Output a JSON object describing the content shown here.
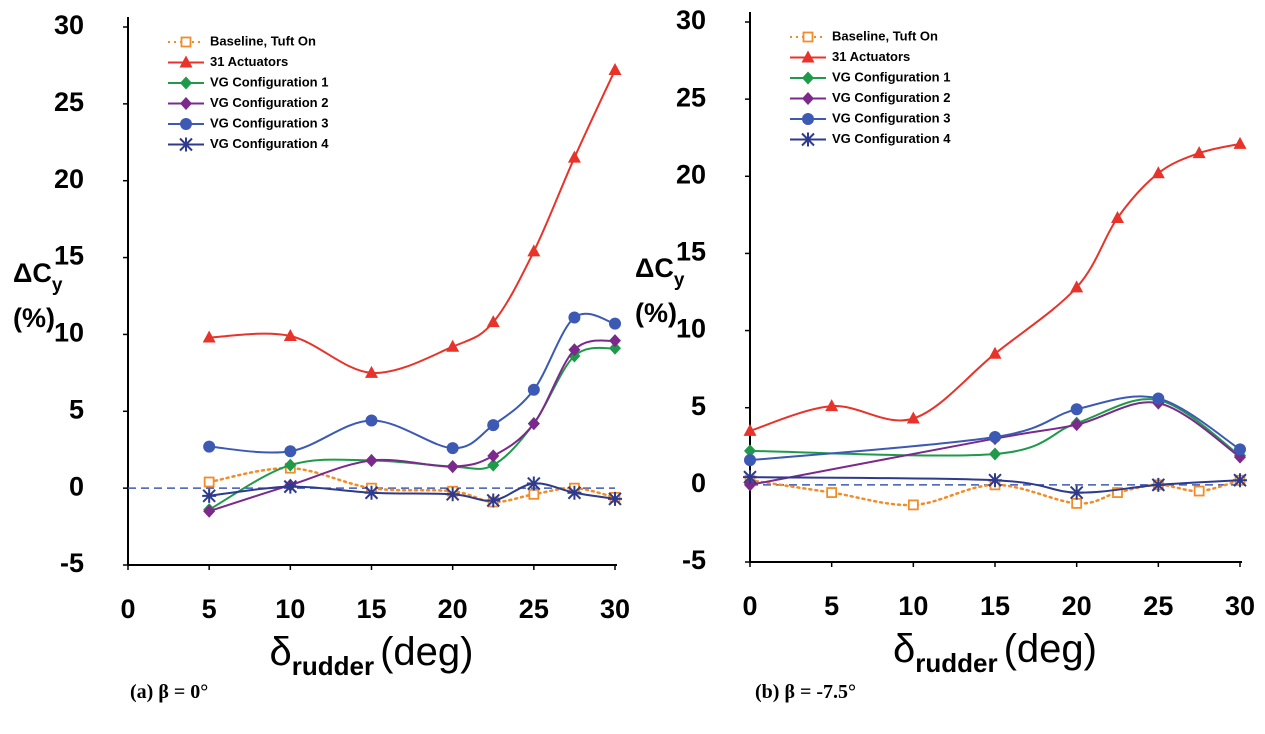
{
  "chart_data": [
    {
      "type": "line",
      "caption": "(a) β = 0°",
      "ylabel_main": "ΔC",
      "ylabel_sub": "y",
      "ylabel_unit": "(%)",
      "xlabel_main": "δ",
      "xlabel_sub": "rudder",
      "xlabel_unit": "(deg)",
      "x": [
        5,
        10,
        15,
        20,
        22.5,
        25,
        27.5,
        30
      ],
      "xlim": [
        0,
        30
      ],
      "xticks": [
        0,
        5,
        10,
        15,
        20,
        25,
        30
      ],
      "ylim": [
        -5,
        30
      ],
      "yticks": [
        -5,
        0,
        5,
        10,
        15,
        20,
        25,
        30
      ],
      "hline": 0,
      "legend": "upper left",
      "series": [
        {
          "name": "Baseline, Tuft On",
          "color": "#f28c28",
          "marker": "square",
          "dash": true,
          "values": [
            0.4,
            1.3,
            0,
            -0.2,
            -0.9,
            -0.4,
            0,
            -0.6
          ]
        },
        {
          "name": "31 Actuators",
          "color": "#e8332a",
          "marker": "triangle",
          "values": [
            9.8,
            9.9,
            7.5,
            9.2,
            10.8,
            15.4,
            21.5,
            27.2
          ]
        },
        {
          "name": "VG Configuration 1",
          "color": "#1e9a4a",
          "marker": "diamond",
          "values": [
            -1.4,
            1.5,
            1.8,
            1.4,
            1.5,
            4.2,
            8.6,
            9.1
          ]
        },
        {
          "name": "VG Configuration 2",
          "color": "#7b2a8c",
          "marker": "diamond",
          "values": [
            -1.5,
            0.2,
            1.8,
            1.4,
            2.1,
            4.2,
            9,
            9.6
          ]
        },
        {
          "name": "VG Configuration 3",
          "color": "#3c5ab4",
          "marker": "circle",
          "values": [
            2.7,
            2.4,
            4.4,
            2.6,
            4.1,
            6.4,
            11.1,
            10.7
          ]
        },
        {
          "name": "VG Configuration 4",
          "color": "#2e3a8c",
          "marker": "star",
          "values": [
            -0.5,
            0.1,
            -0.3,
            -0.4,
            -0.8,
            0.3,
            -0.3,
            -0.7
          ]
        }
      ]
    },
    {
      "type": "line",
      "caption": "(b) β = -7.5°",
      "ylabel_main": "ΔC",
      "ylabel_sub": "y",
      "ylabel_unit": "(%)",
      "xlabel_main": "δ",
      "xlabel_sub": "rudder",
      "xlabel_unit": "(deg)",
      "x": [
        0,
        5,
        10,
        15,
        20,
        22.5,
        25,
        27.5,
        30
      ],
      "xlim": [
        0,
        30
      ],
      "xticks": [
        0,
        5,
        10,
        15,
        20,
        25,
        30
      ],
      "ylim": [
        -5,
        30
      ],
      "yticks": [
        -5,
        0,
        5,
        10,
        15,
        20,
        25,
        30
      ],
      "hline": 0,
      "legend": "upper left",
      "series": [
        {
          "name": "Baseline, Tuft On",
          "color": "#f28c28",
          "marker": "square",
          "dash": true,
          "values": [
            0.3,
            -0.5,
            -1.3,
            0,
            -1.2,
            -0.5,
            0,
            -0.4,
            0.3
          ]
        },
        {
          "name": "31 Actuators",
          "color": "#e8332a",
          "marker": "triangle",
          "values": [
            3.5,
            5.1,
            4.3,
            8.5,
            12.8,
            17.3,
            20.2,
            21.5,
            22.1
          ]
        },
        {
          "name": "VG Configuration 1",
          "color": "#1e9a4a",
          "marker": "diamond",
          "x": [
            0,
            15,
            20,
            25,
            30
          ],
          "values": [
            2.2,
            2.0,
            4.0,
            5.5,
            1.9
          ]
        },
        {
          "name": "VG Configuration 2",
          "color": "#7b2a8c",
          "marker": "diamond",
          "x": [
            0,
            15,
            20,
            25,
            30
          ],
          "values": [
            0,
            3.0,
            3.9,
            5.3,
            1.8
          ]
        },
        {
          "name": "VG Configuration 3",
          "color": "#3c5ab4",
          "marker": "circle",
          "x": [
            0,
            15,
            20,
            25,
            30
          ],
          "values": [
            1.6,
            3.1,
            4.9,
            5.6,
            2.3
          ]
        },
        {
          "name": "VG Configuration 4",
          "color": "#2e3a8c",
          "marker": "star",
          "x": [
            0,
            15,
            20,
            25,
            30
          ],
          "values": [
            0.5,
            0.3,
            -0.5,
            0,
            0.3
          ]
        }
      ]
    }
  ]
}
